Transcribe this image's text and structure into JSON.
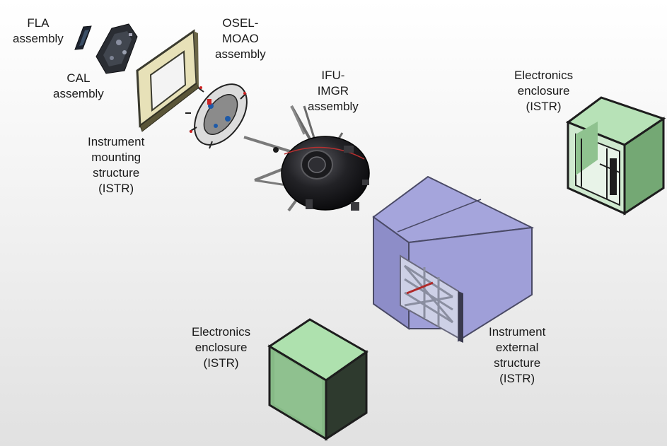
{
  "labels": {
    "fla": [
      "FLA",
      "assembly"
    ],
    "cal": [
      "CAL",
      "assembly"
    ],
    "osel": [
      "OSEL-",
      "MOAO",
      "assembly"
    ],
    "ifu": [
      "IFU-",
      "IMGR",
      "assembly"
    ],
    "mounting": [
      "Instrument",
      "mounting",
      "structure",
      "(ISTR)"
    ],
    "elec_top": [
      "Electronics",
      "enclosure",
      "(ISTR)"
    ],
    "elec_bottom": [
      "Electronics",
      "enclosure",
      "(ISTR)"
    ],
    "external": [
      "Instrument",
      "external",
      "structure",
      "(ISTR)"
    ]
  },
  "colors": {
    "enclosure_green": "#a9d9a9",
    "external_purple": "#9f9fd8",
    "frame_cream": "#e7e1b8",
    "frame_dark": "#3a3a2e",
    "ifu_body": "#1c1c1e"
  }
}
